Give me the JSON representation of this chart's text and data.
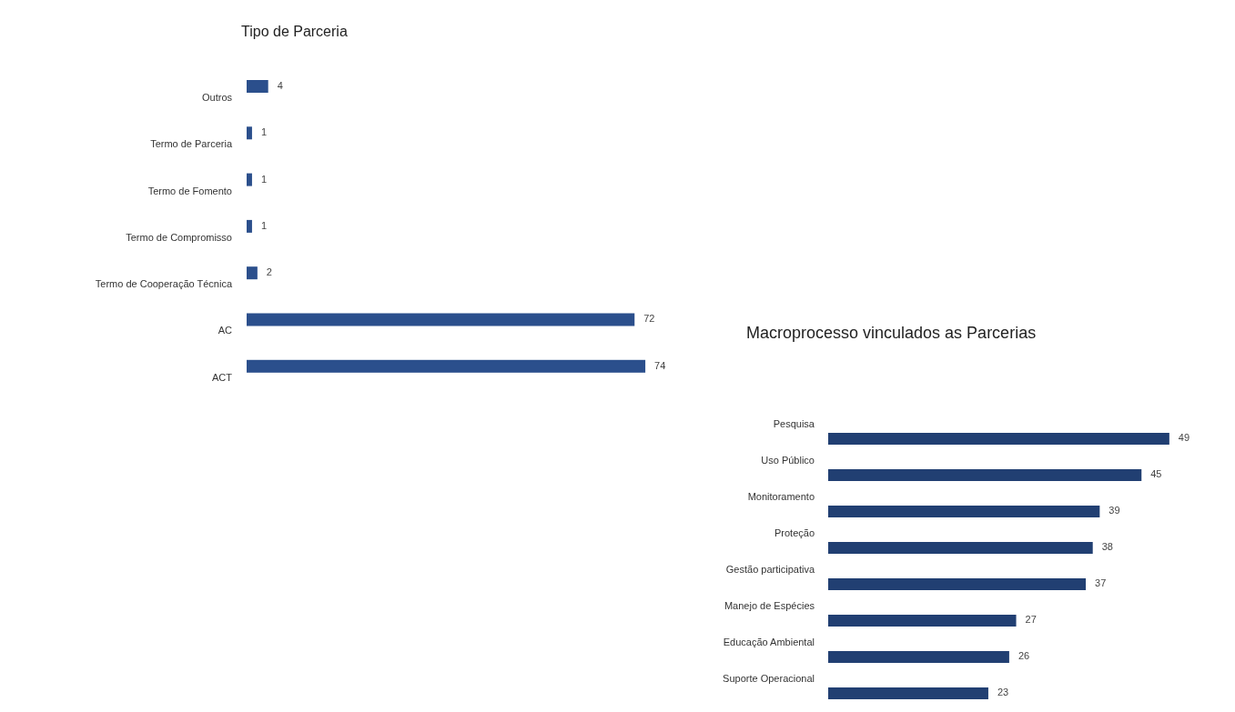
{
  "chart_data": [
    {
      "type": "bar",
      "title": "Tipo de Parceria",
      "orientation": "horizontal",
      "categories": [
        "Outros",
        "Termo de Parceria",
        "Termo de Fomento",
        "Termo de Compromisso",
        "Termo de Cooperação Técnica",
        "AC",
        "ACT"
      ],
      "values": [
        4,
        1,
        1,
        1,
        2,
        72,
        74
      ],
      "color": "#2b4f8c",
      "data_labels": true
    },
    {
      "type": "bar",
      "title": "Macroprocesso vinculados as Parcerias",
      "orientation": "horizontal",
      "categories": [
        "Pesquisa",
        "Uso Público",
        "Monitoramento",
        "Proteção",
        "Gestão participativa",
        "Manejo de Espécies",
        "Educação Ambiental",
        "Suporte Operacional"
      ],
      "values": [
        49,
        45,
        39,
        38,
        37,
        27,
        26,
        23
      ],
      "color": "#213f72",
      "data_labels": true
    }
  ]
}
